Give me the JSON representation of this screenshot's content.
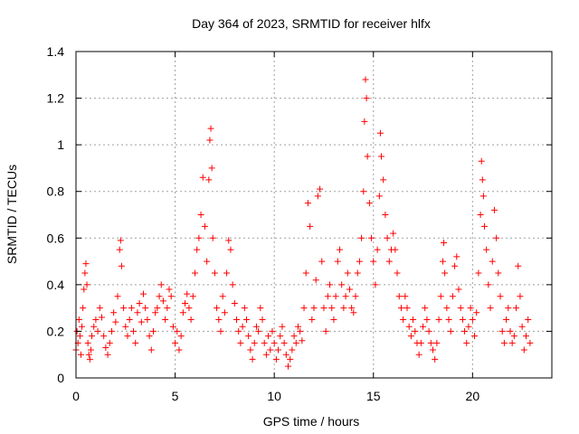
{
  "chart_data": {
    "type": "scatter",
    "title": "Day 364 of 2023, SRMTID for receiver hlfx",
    "xlabel": "GPS time / hours",
    "ylabel": "SRMTID / TECUs",
    "xlim": [
      0,
      24
    ],
    "ylim": [
      0,
      1.4
    ],
    "xticks": [
      0,
      5,
      10,
      15,
      20
    ],
    "xtick_labels": [
      "0",
      "5",
      "10",
      "15",
      "20"
    ],
    "yticks": [
      0,
      0.2,
      0.4,
      0.6,
      0.8,
      1.0,
      1.2,
      1.4
    ],
    "ytick_labels": [
      "0",
      "0.2",
      "0.4",
      "0.6",
      "0.8",
      "1",
      "1.2",
      "1.4"
    ],
    "grid": true,
    "marker": "plus",
    "series": [
      {
        "name": "SRMTID",
        "color": "#ff0000",
        "points": [
          [
            0.0,
            0.12
          ],
          [
            0.05,
            0.2
          ],
          [
            0.1,
            0.15
          ],
          [
            0.15,
            0.25
          ],
          [
            0.2,
            0.18
          ],
          [
            0.25,
            0.1
          ],
          [
            0.3,
            0.22
          ],
          [
            0.35,
            0.3
          ],
          [
            0.4,
            0.38
          ],
          [
            0.45,
            0.45
          ],
          [
            0.5,
            0.49
          ],
          [
            0.55,
            0.4
          ],
          [
            0.6,
            0.15
          ],
          [
            0.65,
            0.1
          ],
          [
            0.7,
            0.08
          ],
          [
            0.75,
            0.12
          ],
          [
            0.8,
            0.18
          ],
          [
            0.9,
            0.22
          ],
          [
            1.0,
            0.25
          ],
          [
            1.1,
            0.2
          ],
          [
            1.2,
            0.3
          ],
          [
            1.3,
            0.26
          ],
          [
            1.4,
            0.18
          ],
          [
            1.5,
            0.13
          ],
          [
            1.6,
            0.1
          ],
          [
            1.7,
            0.15
          ],
          [
            1.8,
            0.2
          ],
          [
            1.9,
            0.28
          ],
          [
            2.0,
            0.24
          ],
          [
            2.1,
            0.35
          ],
          [
            2.2,
            0.55
          ],
          [
            2.25,
            0.59
          ],
          [
            2.3,
            0.48
          ],
          [
            2.4,
            0.3
          ],
          [
            2.5,
            0.22
          ],
          [
            2.6,
            0.18
          ],
          [
            2.7,
            0.25
          ],
          [
            2.8,
            0.3
          ],
          [
            2.9,
            0.2
          ],
          [
            3.0,
            0.15
          ],
          [
            3.1,
            0.28
          ],
          [
            3.2,
            0.32
          ],
          [
            3.3,
            0.24
          ],
          [
            3.4,
            0.36
          ],
          [
            3.5,
            0.3
          ],
          [
            3.6,
            0.25
          ],
          [
            3.7,
            0.18
          ],
          [
            3.8,
            0.12
          ],
          [
            3.9,
            0.2
          ],
          [
            4.0,
            0.28
          ],
          [
            4.1,
            0.3
          ],
          [
            4.2,
            0.35
          ],
          [
            4.3,
            0.4
          ],
          [
            4.4,
            0.33
          ],
          [
            4.5,
            0.25
          ],
          [
            4.6,
            0.3
          ],
          [
            4.7,
            0.38
          ],
          [
            4.8,
            0.35
          ],
          [
            4.9,
            0.22
          ],
          [
            5.0,
            0.15
          ],
          [
            5.1,
            0.2
          ],
          [
            5.2,
            0.12
          ],
          [
            5.3,
            0.18
          ],
          [
            5.4,
            0.28
          ],
          [
            5.5,
            0.32
          ],
          [
            5.6,
            0.36
          ],
          [
            5.7,
            0.3
          ],
          [
            5.8,
            0.25
          ],
          [
            5.9,
            0.35
          ],
          [
            6.0,
            0.45
          ],
          [
            6.1,
            0.55
          ],
          [
            6.2,
            0.6
          ],
          [
            6.3,
            0.7
          ],
          [
            6.4,
            0.86
          ],
          [
            6.5,
            0.65
          ],
          [
            6.6,
            0.5
          ],
          [
            6.7,
            0.85
          ],
          [
            6.75,
            1.02
          ],
          [
            6.8,
            1.07
          ],
          [
            6.85,
            0.9
          ],
          [
            6.9,
            0.6
          ],
          [
            7.0,
            0.45
          ],
          [
            7.1,
            0.3
          ],
          [
            7.2,
            0.25
          ],
          [
            7.3,
            0.2
          ],
          [
            7.4,
            0.35
          ],
          [
            7.5,
            0.28
          ],
          [
            7.6,
            0.45
          ],
          [
            7.7,
            0.59
          ],
          [
            7.8,
            0.55
          ],
          [
            7.9,
            0.4
          ],
          [
            8.0,
            0.32
          ],
          [
            8.1,
            0.25
          ],
          [
            8.2,
            0.2
          ],
          [
            8.3,
            0.15
          ],
          [
            8.4,
            0.22
          ],
          [
            8.5,
            0.3
          ],
          [
            8.6,
            0.25
          ],
          [
            8.7,
            0.18
          ],
          [
            8.8,
            0.12
          ],
          [
            8.9,
            0.08
          ],
          [
            9.0,
            0.15
          ],
          [
            9.1,
            0.22
          ],
          [
            9.2,
            0.2
          ],
          [
            9.3,
            0.3
          ],
          [
            9.4,
            0.25
          ],
          [
            9.5,
            0.15
          ],
          [
            9.6,
            0.1
          ],
          [
            9.7,
            0.18
          ],
          [
            9.8,
            0.12
          ],
          [
            9.9,
            0.2
          ],
          [
            10.0,
            0.15
          ],
          [
            10.1,
            0.08
          ],
          [
            10.2,
            0.12
          ],
          [
            10.3,
            0.18
          ],
          [
            10.4,
            0.22
          ],
          [
            10.5,
            0.15
          ],
          [
            10.6,
            0.1
          ],
          [
            10.7,
            0.05
          ],
          [
            10.8,
            0.08
          ],
          [
            10.9,
            0.12
          ],
          [
            11.0,
            0.18
          ],
          [
            11.1,
            0.15
          ],
          [
            11.2,
            0.22
          ],
          [
            11.3,
            0.2
          ],
          [
            11.4,
            0.16
          ],
          [
            11.5,
            0.3
          ],
          [
            11.6,
            0.45
          ],
          [
            11.7,
            0.75
          ],
          [
            11.8,
            0.65
          ],
          [
            11.9,
            0.25
          ],
          [
            12.0,
            0.3
          ],
          [
            12.1,
            0.42
          ],
          [
            12.2,
            0.78
          ],
          [
            12.3,
            0.81
          ],
          [
            12.4,
            0.5
          ],
          [
            12.5,
            0.3
          ],
          [
            12.6,
            0.2
          ],
          [
            12.7,
            0.35
          ],
          [
            12.8,
            0.4
          ],
          [
            12.9,
            0.3
          ],
          [
            13.0,
            0.25
          ],
          [
            13.1,
            0.35
          ],
          [
            13.2,
            0.5
          ],
          [
            13.3,
            0.55
          ],
          [
            13.4,
            0.4
          ],
          [
            13.5,
            0.3
          ],
          [
            13.6,
            0.35
          ],
          [
            13.7,
            0.45
          ],
          [
            13.8,
            0.38
          ],
          [
            13.9,
            0.3
          ],
          [
            14.0,
            0.28
          ],
          [
            14.1,
            0.35
          ],
          [
            14.2,
            0.45
          ],
          [
            14.3,
            0.5
          ],
          [
            14.4,
            0.6
          ],
          [
            14.5,
            0.8
          ],
          [
            14.55,
            1.1
          ],
          [
            14.6,
            1.28
          ],
          [
            14.65,
            1.2
          ],
          [
            14.7,
            0.95
          ],
          [
            14.8,
            0.75
          ],
          [
            14.9,
            0.6
          ],
          [
            15.0,
            0.5
          ],
          [
            15.1,
            0.4
          ],
          [
            15.2,
            0.55
          ],
          [
            15.3,
            0.78
          ],
          [
            15.35,
            1.05
          ],
          [
            15.4,
            0.95
          ],
          [
            15.5,
            0.85
          ],
          [
            15.6,
            0.7
          ],
          [
            15.7,
            0.6
          ],
          [
            15.8,
            0.5
          ],
          [
            15.9,
            0.55
          ],
          [
            16.0,
            0.62
          ],
          [
            16.1,
            0.55
          ],
          [
            16.2,
            0.45
          ],
          [
            16.3,
            0.35
          ],
          [
            16.4,
            0.3
          ],
          [
            16.5,
            0.25
          ],
          [
            16.6,
            0.35
          ],
          [
            16.7,
            0.3
          ],
          [
            16.8,
            0.22
          ],
          [
            16.9,
            0.18
          ],
          [
            17.0,
            0.25
          ],
          [
            17.1,
            0.2
          ],
          [
            17.2,
            0.15
          ],
          [
            17.3,
            0.1
          ],
          [
            17.4,
            0.15
          ],
          [
            17.5,
            0.22
          ],
          [
            17.6,
            0.3
          ],
          [
            17.7,
            0.25
          ],
          [
            17.8,
            0.2
          ],
          [
            17.9,
            0.15
          ],
          [
            18.0,
            0.12
          ],
          [
            18.1,
            0.08
          ],
          [
            18.2,
            0.15
          ],
          [
            18.3,
            0.25
          ],
          [
            18.4,
            0.35
          ],
          [
            18.5,
            0.5
          ],
          [
            18.55,
            0.58
          ],
          [
            18.6,
            0.45
          ],
          [
            18.7,
            0.3
          ],
          [
            18.8,
            0.25
          ],
          [
            18.9,
            0.2
          ],
          [
            19.0,
            0.35
          ],
          [
            19.1,
            0.48
          ],
          [
            19.2,
            0.52
          ],
          [
            19.3,
            0.38
          ],
          [
            19.4,
            0.3
          ],
          [
            19.5,
            0.25
          ],
          [
            19.6,
            0.2
          ],
          [
            19.7,
            0.15
          ],
          [
            19.8,
            0.22
          ],
          [
            19.9,
            0.3
          ],
          [
            20.0,
            0.25
          ],
          [
            20.1,
            0.18
          ],
          [
            20.2,
            0.28
          ],
          [
            20.3,
            0.45
          ],
          [
            20.4,
            0.7
          ],
          [
            20.45,
            0.93
          ],
          [
            20.5,
            0.85
          ],
          [
            20.55,
            0.78
          ],
          [
            20.6,
            0.65
          ],
          [
            20.7,
            0.55
          ],
          [
            20.8,
            0.4
          ],
          [
            20.9,
            0.3
          ],
          [
            21.0,
            0.5
          ],
          [
            21.1,
            0.72
          ],
          [
            21.2,
            0.6
          ],
          [
            21.3,
            0.45
          ],
          [
            21.4,
            0.35
          ],
          [
            21.5,
            0.2
          ],
          [
            21.6,
            0.15
          ],
          [
            21.7,
            0.25
          ],
          [
            21.8,
            0.3
          ],
          [
            21.9,
            0.2
          ],
          [
            22.0,
            0.15
          ],
          [
            22.1,
            0.18
          ],
          [
            22.2,
            0.3
          ],
          [
            22.3,
            0.48
          ],
          [
            22.4,
            0.35
          ],
          [
            22.5,
            0.22
          ],
          [
            22.6,
            0.12
          ],
          [
            22.7,
            0.18
          ],
          [
            22.8,
            0.25
          ],
          [
            22.9,
            0.15
          ]
        ]
      }
    ]
  }
}
